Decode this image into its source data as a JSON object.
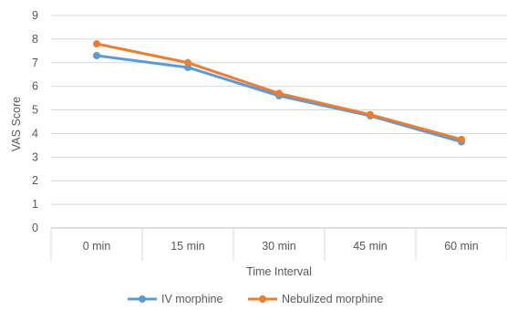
{
  "chart_data": {
    "type": "line",
    "title": "",
    "xlabel": "Time Interval",
    "ylabel": "VAS Score",
    "categories": [
      "0 min",
      "15 min",
      "30 min",
      "45 min",
      "60 min"
    ],
    "ylim": [
      0,
      9
    ],
    "yticks": [
      "0",
      "1",
      "2",
      "3",
      "4",
      "5",
      "6",
      "7",
      "8",
      "9"
    ],
    "grid": true,
    "legend_position": "bottom",
    "series": [
      {
        "name": "IV morphine",
        "values": [
          7.3,
          6.8,
          5.6,
          4.75,
          3.65
        ],
        "color": "#5B9BD5"
      },
      {
        "name": "Nebulized morphine",
        "values": [
          7.8,
          7.0,
          5.7,
          4.8,
          3.75
        ],
        "color": "#ED7D31"
      }
    ]
  }
}
